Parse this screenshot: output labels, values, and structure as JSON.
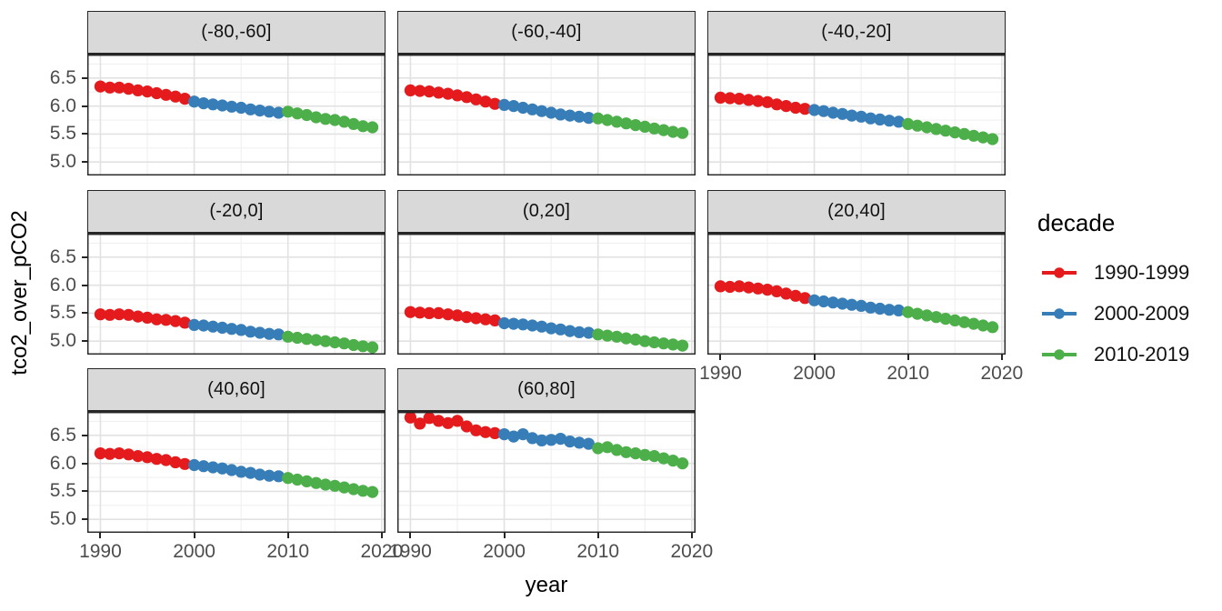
{
  "figure": {
    "y_axis_title": "tco2_over_pCO2",
    "x_axis_title": "year"
  },
  "legend": {
    "title": "decade",
    "entries": [
      {
        "label": "1990-1999",
        "color": "#e41a1c"
      },
      {
        "label": "2000-2009",
        "color": "#377eb8"
      },
      {
        "label": "2010-2019",
        "color": "#4daf4a"
      }
    ]
  },
  "colors": {
    "strip_fill": "#d9d9d9",
    "panel_border": "#262626",
    "grid_major": "#e2e2e2",
    "grid_minor": "#f0f0f0",
    "tick_text": "#4d4d4d",
    "decade_red": "#e41a1c",
    "decade_blue": "#377eb8",
    "decade_green": "#4daf4a"
  },
  "chart_data": {
    "type": "line",
    "title": "",
    "xlabel": "year",
    "ylabel": "tco2_over_pCO2",
    "grid": true,
    "legend_position": "right",
    "color_by": "decade",
    "x": [
      1990,
      1991,
      1992,
      1993,
      1994,
      1995,
      1996,
      1997,
      1998,
      1999,
      2000,
      2001,
      2002,
      2003,
      2004,
      2005,
      2006,
      2007,
      2008,
      2009,
      2010,
      2011,
      2012,
      2013,
      2014,
      2015,
      2016,
      2017,
      2018,
      2019
    ],
    "x_ticks": [
      1990,
      2000,
      2010,
      2020
    ],
    "y_ticks": [
      6.5,
      6.0,
      5.5,
      5.0
    ],
    "x_minor_ticks": [
      1995,
      2005,
      2015
    ],
    "y_minor_ticks": [
      5.25,
      5.75,
      6.25,
      6.75
    ],
    "xlim": [
      1988.6,
      2020.4
    ],
    "ylim": [
      4.76,
      6.92
    ],
    "decades": [
      {
        "name": "1990-1999",
        "color": "#e41a1c",
        "year_start": 1990,
        "year_end": 1999
      },
      {
        "name": "2000-2009",
        "color": "#377eb8",
        "year_start": 2000,
        "year_end": 2009
      },
      {
        "name": "2010-2019",
        "color": "#4daf4a",
        "year_start": 2010,
        "year_end": 2019
      }
    ],
    "facets": [
      {
        "label": "(-80,-60]",
        "values": [
          6.35,
          6.33,
          6.33,
          6.31,
          6.28,
          6.26,
          6.23,
          6.2,
          6.17,
          6.13,
          6.08,
          6.05,
          6.03,
          6.01,
          5.99,
          5.97,
          5.94,
          5.92,
          5.9,
          5.88,
          5.9,
          5.87,
          5.84,
          5.8,
          5.77,
          5.75,
          5.72,
          5.68,
          5.64,
          5.62
        ]
      },
      {
        "label": "(-60,-40]",
        "values": [
          6.28,
          6.27,
          6.26,
          6.24,
          6.22,
          6.19,
          6.16,
          6.12,
          6.08,
          6.04,
          6.02,
          6.0,
          5.97,
          5.94,
          5.91,
          5.88,
          5.85,
          5.83,
          5.81,
          5.79,
          5.78,
          5.75,
          5.72,
          5.69,
          5.66,
          5.63,
          5.6,
          5.57,
          5.54,
          5.52
        ]
      },
      {
        "label": "(-40,-20]",
        "values": [
          6.15,
          6.14,
          6.13,
          6.11,
          6.09,
          6.07,
          6.03,
          6.0,
          5.97,
          5.95,
          5.93,
          5.91,
          5.88,
          5.86,
          5.83,
          5.81,
          5.78,
          5.76,
          5.74,
          5.72,
          5.68,
          5.65,
          5.62,
          5.59,
          5.56,
          5.53,
          5.5,
          5.47,
          5.44,
          5.41
        ]
      },
      {
        "label": "(-20,0]",
        "values": [
          5.48,
          5.47,
          5.48,
          5.47,
          5.44,
          5.42,
          5.39,
          5.38,
          5.36,
          5.33,
          5.29,
          5.28,
          5.26,
          5.24,
          5.22,
          5.2,
          5.17,
          5.15,
          5.13,
          5.12,
          5.08,
          5.06,
          5.04,
          5.02,
          5.0,
          4.98,
          4.96,
          4.93,
          4.91,
          4.89
        ]
      },
      {
        "label": "(0,20]",
        "values": [
          5.52,
          5.51,
          5.5,
          5.5,
          5.48,
          5.46,
          5.43,
          5.41,
          5.39,
          5.37,
          5.32,
          5.31,
          5.3,
          5.28,
          5.26,
          5.23,
          5.21,
          5.18,
          5.16,
          5.15,
          5.12,
          5.1,
          5.08,
          5.05,
          5.03,
          5.0,
          4.98,
          4.96,
          4.94,
          4.92
        ]
      },
      {
        "label": "(20,40]",
        "values": [
          5.98,
          5.97,
          5.98,
          5.96,
          5.94,
          5.92,
          5.89,
          5.85,
          5.81,
          5.77,
          5.73,
          5.71,
          5.69,
          5.67,
          5.65,
          5.63,
          5.6,
          5.58,
          5.56,
          5.55,
          5.52,
          5.49,
          5.46,
          5.43,
          5.4,
          5.37,
          5.34,
          5.31,
          5.28,
          5.25
        ]
      },
      {
        "label": "(40,60]",
        "values": [
          6.18,
          6.17,
          6.18,
          6.16,
          6.13,
          6.11,
          6.08,
          6.06,
          6.02,
          5.99,
          5.97,
          5.95,
          5.93,
          5.91,
          5.88,
          5.85,
          5.83,
          5.8,
          5.78,
          5.77,
          5.74,
          5.71,
          5.68,
          5.65,
          5.62,
          5.6,
          5.57,
          5.54,
          5.51,
          5.49
        ]
      },
      {
        "label": "(60,80]",
        "values": [
          6.82,
          6.71,
          6.81,
          6.76,
          6.72,
          6.76,
          6.66,
          6.59,
          6.56,
          6.54,
          6.52,
          6.48,
          6.52,
          6.45,
          6.41,
          6.42,
          6.44,
          6.39,
          6.37,
          6.35,
          6.27,
          6.29,
          6.24,
          6.2,
          6.18,
          6.15,
          6.13,
          6.09,
          6.05,
          6.0
        ]
      }
    ]
  }
}
